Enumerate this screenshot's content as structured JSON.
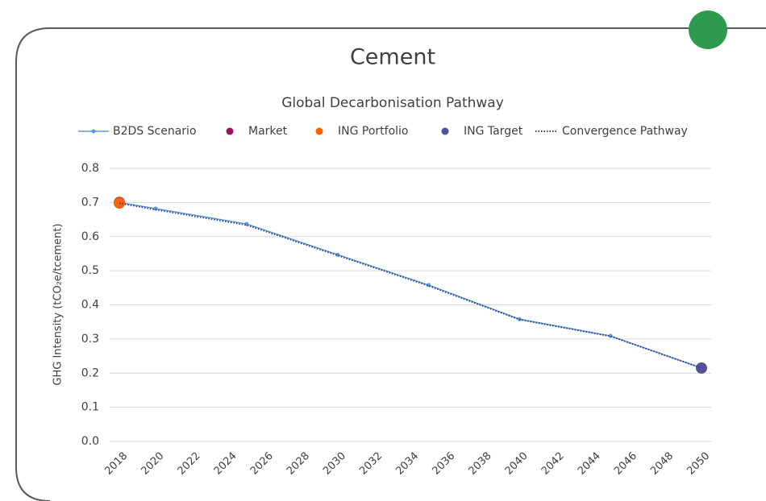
{
  "chart_data": {
    "type": "line",
    "title": "Cement",
    "subtitle": "Global Decarbonisation Pathway",
    "y_label": "GHG Intensity (tCO₂e/tcement)",
    "xlim": [
      2018,
      2050
    ],
    "xticks": [
      2018,
      2020,
      2022,
      2024,
      2026,
      2028,
      2030,
      2032,
      2034,
      2036,
      2038,
      2040,
      2042,
      2044,
      2046,
      2048,
      2050
    ],
    "ylim": [
      0,
      0.8
    ],
    "yticks": [
      {
        "value": 0,
        "label": "0.0"
      },
      0.1,
      0.2,
      0.3,
      0.4,
      0.5,
      0.6,
      0.7,
      0.8
    ],
    "grid": true,
    "series": [
      {
        "name": "B2DS Scenario",
        "color": "#5b9bd5",
        "style": "line-marker",
        "x": [
          2018,
          2020,
          2025,
          2030,
          2035,
          2040,
          2045,
          2050
        ],
        "values": [
          0.7,
          0.682,
          0.637,
          0.547,
          0.458,
          0.358,
          0.309,
          0.215
        ]
      },
      {
        "name": "Market",
        "color": "#a0135f",
        "style": "point",
        "x": [
          2018
        ],
        "values": [
          0.7
        ]
      },
      {
        "name": "ING Portfolio",
        "color": "#ff6200",
        "style": "point",
        "x": [
          2018
        ],
        "values": [
          0.698
        ]
      },
      {
        "name": "ING Target",
        "color": "#52519a",
        "style": "point",
        "x": [
          2050
        ],
        "values": [
          0.215
        ]
      },
      {
        "name": "Convergence Pathway",
        "color": "#2f3f8f",
        "style": "dotted",
        "x": [
          2018,
          2020,
          2025,
          2030,
          2035,
          2040,
          2045,
          2050
        ],
        "values": [
          0.698,
          0.679,
          0.634,
          0.545,
          0.456,
          0.357,
          0.308,
          0.215
        ]
      }
    ]
  }
}
